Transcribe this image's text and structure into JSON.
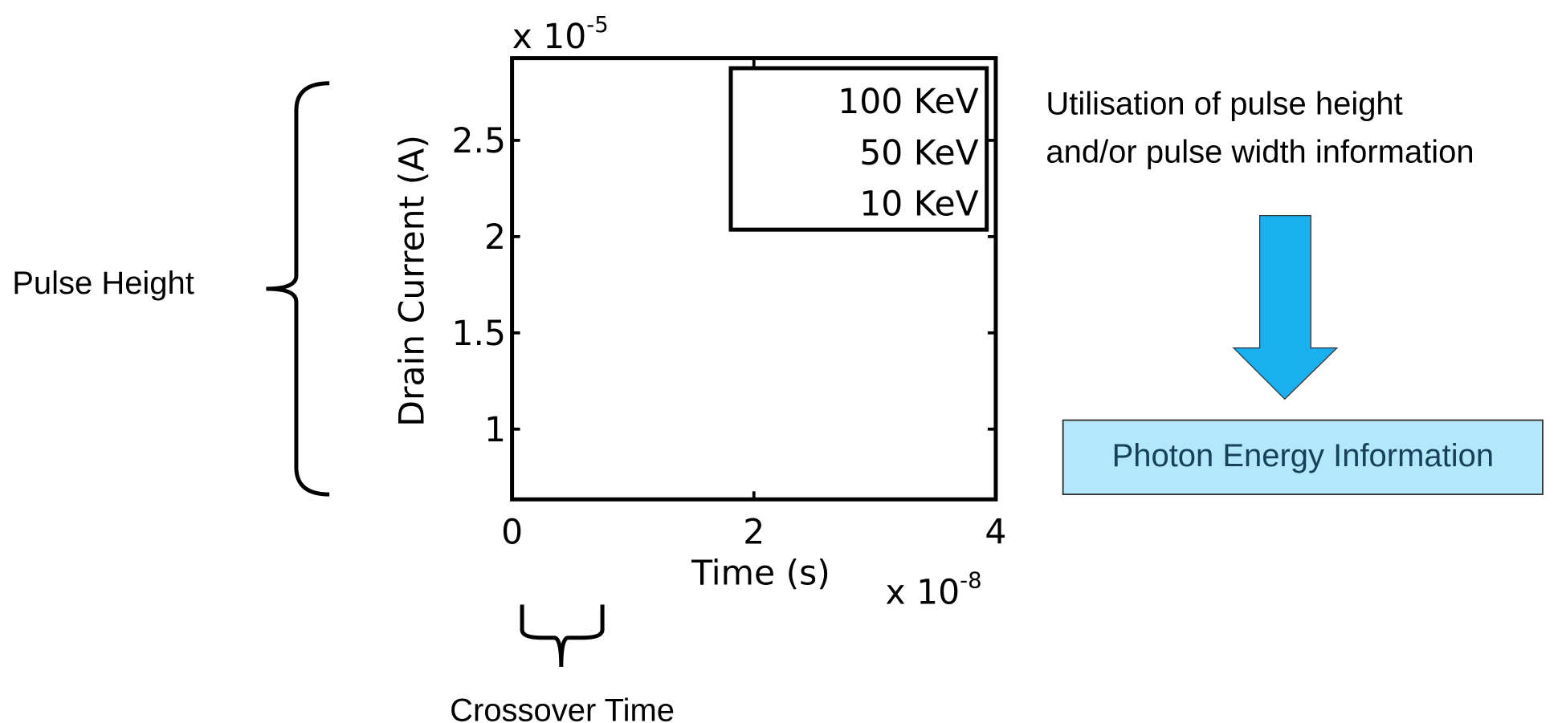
{
  "chart_data": {
    "type": "line",
    "xlabel": "Time (s)",
    "ylabel": "Drain Current (A)",
    "xlim": [
      0,
      4
    ],
    "xticks": [
      0,
      2,
      4
    ],
    "ylim": [
      0.635,
      2.927
    ],
    "yticks": [
      1,
      1.5,
      2,
      2.5
    ],
    "x_multiplier": {
      "base": "x 10",
      "exponent": "-8"
    },
    "y_multiplier": {
      "base": "x 10",
      "exponent": "-5"
    },
    "series": [
      {
        "name": "100 KeV"
      },
      {
        "name": "50 KeV"
      },
      {
        "name": "10 KeV"
      }
    ],
    "legend": "upper right"
  },
  "annotations": {
    "pulse_height": "Pulse Height",
    "crossover_time": "Crossover Time",
    "utilisation": [
      "Utilisation of pulse height",
      "and/or pulse width information"
    ],
    "result": "Photon Energy Information"
  }
}
